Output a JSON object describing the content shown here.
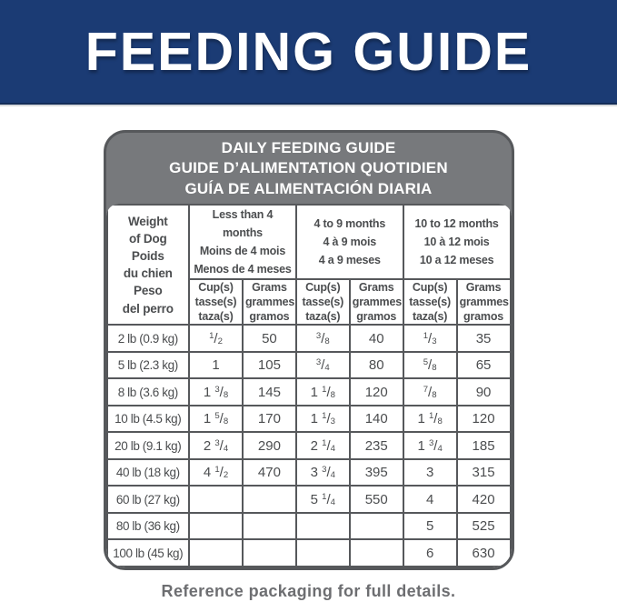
{
  "banner": {
    "title": "FEEDING GUIDE"
  },
  "card": {
    "title": "DAILY FEEDING GUIDE\nGUIDE D’ALIMENTATION QUOTIDIEN\nGUÍA DE ALIMENTACIÓN DIARIA",
    "weight_header": "Weight\nof Dog\nPoids\ndu chien\nPeso\ndel perro",
    "age_groups": [
      {
        "label": "Less than 4 months\nMoins de 4 mois\nMenos de 4 meses"
      },
      {
        "label": "4 to 9 months\n4 à 9 mois\n4 a 9 meses"
      },
      {
        "label": "10 to 12 months\n10 à 12 mois\n10 a 12 meses"
      }
    ],
    "subheaders": {
      "cups": "Cup(s)\ntasse(s)\ntaza(s)",
      "grams": "Grams\ngrammes\ngramos"
    },
    "rows": [
      {
        "weight": "2 lb (0.9 kg)",
        "cells": [
          "1/2",
          "50",
          "3/8",
          "40",
          "1/3",
          "35"
        ]
      },
      {
        "weight": "5 lb (2.3 kg)",
        "cells": [
          "1",
          "105",
          "3/4",
          "80",
          "5/8",
          "65"
        ]
      },
      {
        "weight": "8 lb (3.6 kg)",
        "cells": [
          "1 3/8",
          "145",
          "1 1/8",
          "120",
          "7/8",
          "90"
        ]
      },
      {
        "weight": "10 lb (4.5 kg)",
        "cells": [
          "1 5/8",
          "170",
          "1 1/3",
          "140",
          "1 1/8",
          "120"
        ]
      },
      {
        "weight": "20 lb (9.1 kg)",
        "cells": [
          "2 3/4",
          "290",
          "2 1/4",
          "235",
          "1 3/4",
          "185"
        ]
      },
      {
        "weight": "40 lb (18 kg)",
        "cells": [
          "4 1/2",
          "470",
          "3 3/4",
          "395",
          "3",
          "315"
        ]
      },
      {
        "weight": "60 lb (27 kg)",
        "cells": [
          "",
          "",
          "5 1/4",
          "550",
          "4",
          "420"
        ]
      },
      {
        "weight": "80 lb (36 kg)",
        "cells": [
          "",
          "",
          "",
          "",
          "5",
          "525"
        ]
      },
      {
        "weight": "100 lb (45 kg)",
        "cells": [
          "",
          "",
          "",
          "",
          "6",
          "630"
        ]
      }
    ]
  },
  "footer": {
    "note": "Reference packaging for full details."
  },
  "colors": {
    "banner_blue": "#1B3B74",
    "banner_edge": "#142D58",
    "header_gray": "#77797C",
    "border_gray": "#56585B",
    "text_gray": "#4B4D4F",
    "footer_gray": "#6D6E71"
  }
}
